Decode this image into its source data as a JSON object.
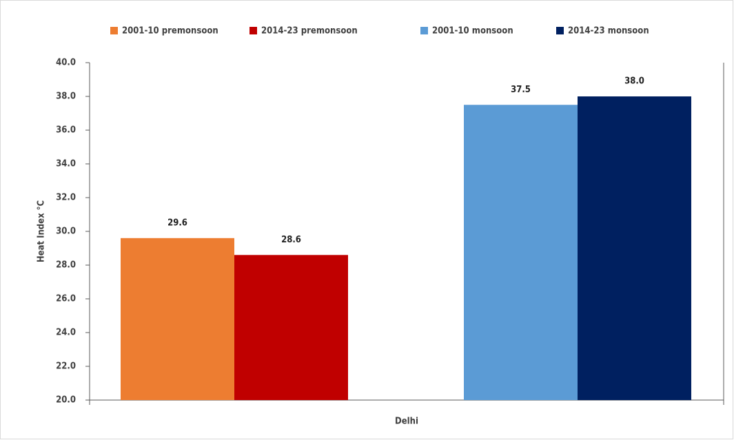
{
  "chart_data": {
    "type": "bar",
    "categories": [
      "Delhi"
    ],
    "y_label": "Heat Index °C",
    "series": [
      {
        "name": "2001-10 premonsoon",
        "color": "#ed7d31",
        "values": [
          29.6
        ],
        "value_labels": [
          "29.6"
        ]
      },
      {
        "name": "2014-23 premonsoon",
        "color": "#c00000",
        "values": [
          28.6
        ],
        "value_labels": [
          "28.6"
        ]
      },
      {
        "name": "2001-10 monsoon",
        "color": "#5b9bd5",
        "values": [
          37.5
        ],
        "value_labels": [
          "37.5"
        ]
      },
      {
        "name": "2014-23 monsoon",
        "color": "#002060",
        "values": [
          38.0
        ],
        "value_labels": [
          "38.0"
        ]
      }
    ],
    "ylim": [
      20,
      40
    ],
    "yticks": [
      {
        "value": 20,
        "label": "20.0"
      },
      {
        "value": 22,
        "label": "22.0"
      },
      {
        "value": 24,
        "label": "24.0"
      },
      {
        "value": 26,
        "label": "26.0"
      },
      {
        "value": 28,
        "label": "28.0"
      },
      {
        "value": 30,
        "label": "30.0"
      },
      {
        "value": 32,
        "label": "32.0"
      },
      {
        "value": 34,
        "label": "34.0"
      },
      {
        "value": 36,
        "label": "36.0"
      },
      {
        "value": 38,
        "label": "38.0"
      },
      {
        "value": 40,
        "label": "40.0"
      }
    ],
    "grid": false,
    "legend": "top"
  }
}
